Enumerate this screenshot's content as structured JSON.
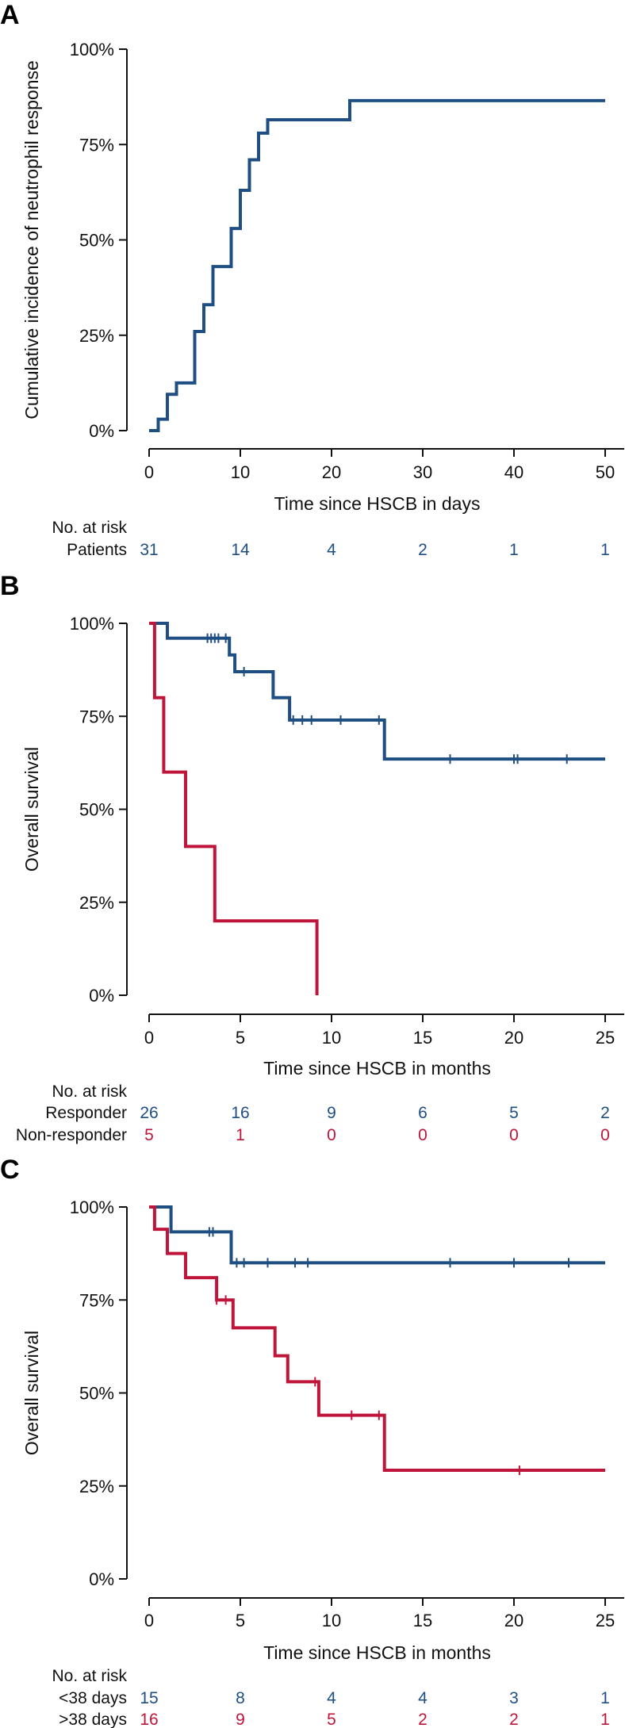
{
  "colors": {
    "blue": "#1f4e82",
    "red": "#c0153a",
    "axis": "#111111"
  },
  "chart_data": [
    {
      "type": "line",
      "panel": "A",
      "title": "",
      "xlabel": "Time since HSCB in days",
      "ylabel": "Cumulative incidence of neutrophil response",
      "xlim": [
        0,
        50
      ],
      "ylim": [
        0,
        100
      ],
      "xticks": [
        0,
        10,
        20,
        30,
        40,
        50
      ],
      "xtick_labels": [
        "0",
        "10",
        "20",
        "30",
        "40",
        "50"
      ],
      "yticks": [
        0,
        25,
        50,
        75,
        100
      ],
      "ytick_labels": [
        "0%",
        "25%",
        "50%",
        "75%",
        "100%"
      ],
      "series": [
        {
          "name": "Patients",
          "color": "#1f4e82",
          "steps": [
            [
              0,
              0
            ],
            [
              1,
              3
            ],
            [
              2,
              9.5
            ],
            [
              3,
              12.5
            ],
            [
              5,
              26
            ],
            [
              6,
              33
            ],
            [
              7,
              43
            ],
            [
              9,
              53
            ],
            [
              10,
              63
            ],
            [
              11,
              71
            ],
            [
              12,
              78
            ],
            [
              13,
              81.5
            ],
            [
              22,
              86.5
            ],
            [
              50,
              86.5
            ]
          ],
          "censored": []
        }
      ],
      "risk_table": {
        "header": "No. at risk",
        "rows": [
          {
            "label": "Patients",
            "color": "#1f4e82",
            "values": [
              "31",
              "14",
              "4",
              "2",
              "1",
              "1"
            ]
          }
        ]
      }
    },
    {
      "type": "line",
      "panel": "B",
      "title": "",
      "xlabel": "Time since HSCB in months",
      "ylabel": "Overall survival",
      "xlim": [
        0,
        25
      ],
      "ylim": [
        0,
        100
      ],
      "xticks": [
        0,
        5,
        10,
        15,
        20,
        25
      ],
      "xtick_labels": [
        "0",
        "5",
        "10",
        "15",
        "20",
        "25"
      ],
      "yticks": [
        0,
        25,
        50,
        75,
        100
      ],
      "ytick_labels": [
        "0%",
        "25%",
        "50%",
        "75%",
        "100%"
      ],
      "series": [
        {
          "name": "Responder",
          "color": "#1f4e82",
          "steps": [
            [
              0,
              100
            ],
            [
              1,
              96
            ],
            [
              4.4,
              91.5
            ],
            [
              4.7,
              87
            ],
            [
              6.8,
              80
            ],
            [
              7.7,
              74
            ],
            [
              12.9,
              63.5
            ],
            [
              25,
              63.5
            ]
          ],
          "censored": [
            3.2,
            3.4,
            3.6,
            3.8,
            4.2,
            5.2,
            7.9,
            8.4,
            8.9,
            10.5,
            12.6,
            16.5,
            20,
            20.2,
            22.9
          ]
        },
        {
          "name": "Non-responder",
          "color": "#c0153a",
          "steps": [
            [
              0,
              100
            ],
            [
              0.3,
              80
            ],
            [
              0.8,
              60
            ],
            [
              2,
              40
            ],
            [
              3.6,
              20
            ],
            [
              9.2,
              0
            ]
          ],
          "censored": []
        }
      ],
      "risk_table": {
        "header": "No. at risk",
        "rows": [
          {
            "label": "Responder",
            "color": "#1f4e82",
            "values": [
              "26",
              "16",
              "9",
              "6",
              "5",
              "2"
            ]
          },
          {
            "label": "Non-responder",
            "color": "#c0153a",
            "values": [
              "5",
              "1",
              "0",
              "0",
              "0",
              "0"
            ]
          }
        ]
      }
    },
    {
      "type": "line",
      "panel": "C",
      "title": "",
      "xlabel": "Time since HSCB in months",
      "ylabel": "Overall survival",
      "xlim": [
        0,
        25
      ],
      "ylim": [
        0,
        100
      ],
      "xticks": [
        0,
        5,
        10,
        15,
        20,
        25
      ],
      "xtick_labels": [
        "0",
        "5",
        "10",
        "15",
        "20",
        "25"
      ],
      "yticks": [
        0,
        25,
        50,
        75,
        100
      ],
      "ytick_labels": [
        "0%",
        "25%",
        "50%",
        "75%",
        "100%"
      ],
      "series": [
        {
          "name": "<38 days",
          "color": "#1f4e82",
          "steps": [
            [
              0,
              100
            ],
            [
              1.2,
              93.3
            ],
            [
              4.5,
              85
            ],
            [
              25,
              85
            ]
          ],
          "censored": [
            3.3,
            3.5,
            4.8,
            5.2,
            6.5,
            8,
            8.7,
            16.5,
            20,
            23
          ]
        },
        {
          "name": ">38 days",
          "color": "#c0153a",
          "steps": [
            [
              0,
              100
            ],
            [
              0.3,
              94
            ],
            [
              1,
              87.5
            ],
            [
              2,
              81
            ],
            [
              3.7,
              75
            ],
            [
              4.6,
              67.5
            ],
            [
              6.9,
              60
            ],
            [
              7.6,
              53
            ],
            [
              9.3,
              44
            ],
            [
              12.9,
              29.2
            ],
            [
              25,
              29.2
            ]
          ],
          "censored": [
            3.7,
            4.2,
            9.1,
            11.1,
            12.6,
            20.3
          ]
        }
      ],
      "risk_table": {
        "header": "No. at risk",
        "rows": [
          {
            "label": "<38 days",
            "color": "#1f4e82",
            "values": [
              "15",
              "8",
              "4",
              "4",
              "3",
              "1"
            ]
          },
          {
            "label": ">38 days",
            "color": "#c0153a",
            "values": [
              "16",
              "9",
              "5",
              "2",
              "2",
              "1"
            ]
          }
        ]
      }
    }
  ]
}
